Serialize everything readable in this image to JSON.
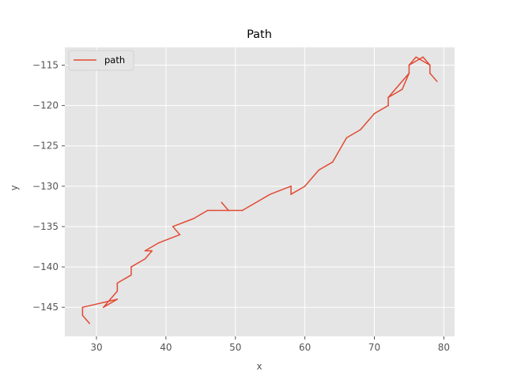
{
  "chart_data": {
    "type": "line",
    "title": "Path",
    "xlabel": "x",
    "ylabel": "y",
    "xlim": [
      25.45,
      81.55
    ],
    "ylim": [
      -148.6,
      -112.8
    ],
    "xticks": [
      30,
      40,
      50,
      60,
      70,
      80
    ],
    "yticks": [
      -145,
      -140,
      -135,
      -130,
      -125,
      -120,
      -115
    ],
    "grid": true,
    "legend_position": "top-left",
    "series": [
      {
        "name": "path",
        "color": "#E24A33",
        "x": [
          48,
          49,
          51,
          55,
          58,
          58,
          60,
          62,
          64,
          66,
          68,
          70,
          72,
          72,
          74,
          75,
          75,
          77,
          78,
          78,
          79,
          78,
          78,
          76,
          75,
          75,
          72,
          72,
          70,
          68,
          66,
          64,
          62,
          60,
          58,
          58,
          55,
          51,
          49,
          46,
          44,
          41,
          42,
          39,
          37,
          38,
          37,
          35,
          35,
          33,
          33,
          32,
          31,
          33,
          28,
          28,
          29
        ],
        "y": [
          -132,
          -133,
          -133,
          -131,
          -130,
          -131,
          -130,
          -128,
          -127,
          -124,
          -123,
          -121,
          -120,
          -119,
          -118,
          -116,
          -115,
          -114,
          -115,
          -116,
          -117,
          -116,
          -115,
          -114,
          -115,
          -116,
          -119,
          -120,
          -121,
          -123,
          -124,
          -127,
          -128,
          -130,
          -131,
          -130,
          -131,
          -133,
          -133,
          -133,
          -134,
          -135,
          -136,
          -137,
          -138,
          -138,
          -139,
          -140,
          -141,
          -142,
          -143,
          -144,
          -145,
          -144,
          -145,
          -146,
          -147
        ]
      }
    ]
  }
}
